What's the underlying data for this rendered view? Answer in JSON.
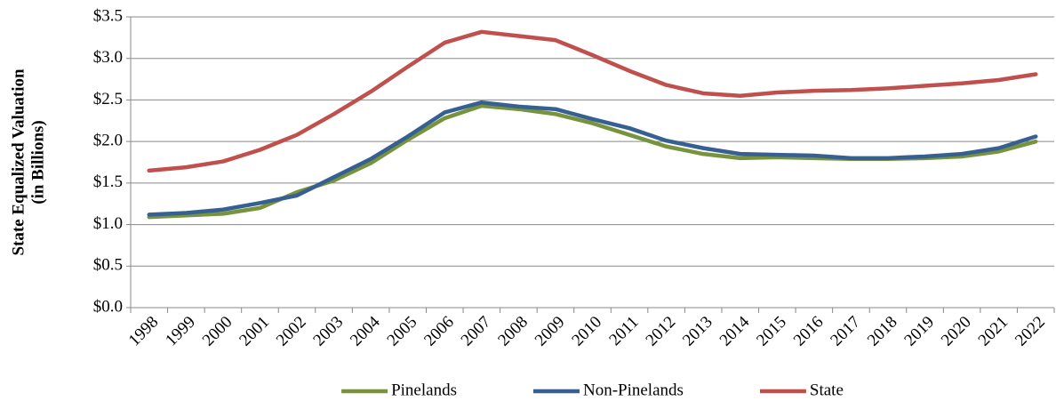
{
  "chart_data": {
    "type": "line",
    "ylabel": [
      "State Equalized Valuation",
      "(in Billions)"
    ],
    "categories": [
      "1998",
      "1999",
      "2000",
      "2001",
      "2002",
      "2003",
      "2004",
      "2005",
      "2006",
      "2007",
      "2008",
      "2009",
      "2010",
      "2011",
      "2012",
      "2013",
      "2014",
      "2015",
      "2016",
      "2017",
      "2018",
      "2019",
      "2020",
      "2021",
      "2022"
    ],
    "series": [
      {
        "name": "Pinelands",
        "color": "#77933c",
        "values": [
          1.09,
          1.11,
          1.13,
          1.2,
          1.39,
          1.53,
          1.74,
          2.02,
          2.28,
          2.43,
          2.39,
          2.33,
          2.22,
          2.08,
          1.94,
          1.85,
          1.8,
          1.81,
          1.8,
          1.79,
          1.79,
          1.8,
          1.82,
          1.88,
          2.0
        ]
      },
      {
        "name": "Non-Pinelands",
        "color": "#376092",
        "values": [
          1.12,
          1.14,
          1.18,
          1.26,
          1.35,
          1.57,
          1.79,
          2.06,
          2.35,
          2.47,
          2.42,
          2.39,
          2.27,
          2.16,
          2.01,
          1.92,
          1.85,
          1.84,
          1.83,
          1.8,
          1.8,
          1.82,
          1.85,
          1.92,
          2.06
        ]
      },
      {
        "name": "State",
        "color": "#c0504d",
        "values": [
          1.65,
          1.69,
          1.76,
          1.9,
          2.08,
          2.33,
          2.6,
          2.9,
          3.19,
          3.32,
          3.27,
          3.22,
          3.04,
          2.85,
          2.68,
          2.58,
          2.55,
          2.59,
          2.61,
          2.62,
          2.64,
          2.67,
          2.7,
          2.74,
          2.81
        ]
      }
    ],
    "ylim": [
      0,
      3.5
    ],
    "yticks": [
      {
        "value": 0,
        "label": "$0.0"
      },
      {
        "value": 0.5,
        "label": "$0.5"
      },
      {
        "value": 1,
        "label": "$1.0"
      },
      {
        "value": 1.5,
        "label": "$1.5"
      },
      {
        "value": 2,
        "label": "$2.0"
      },
      {
        "value": 2.5,
        "label": "$2.5"
      },
      {
        "value": 3,
        "label": "$3.0"
      },
      {
        "value": 3.5,
        "label": "$3.5"
      }
    ],
    "grid": true,
    "legend": "bottom"
  }
}
